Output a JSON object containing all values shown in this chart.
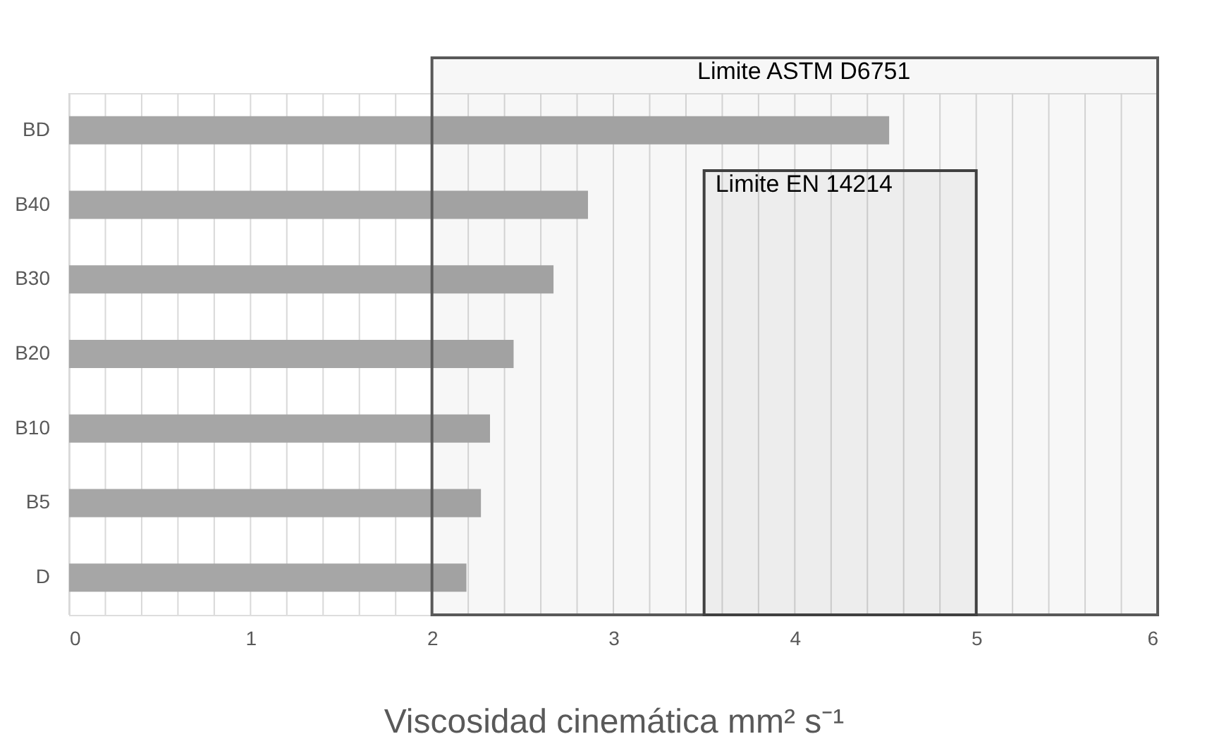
{
  "chart_data": {
    "type": "bar",
    "orientation": "horizontal",
    "xlabel": "Viscosidad cinemática mm² s⁻¹",
    "categories": [
      "BD",
      "B40",
      "B30",
      "B20",
      "B10",
      "B5",
      "D"
    ],
    "values": [
      4.52,
      2.86,
      2.67,
      2.45,
      2.32,
      2.27,
      2.19
    ],
    "color": "#a6a6a6",
    "xlim": [
      0,
      6
    ],
    "xticks": [
      0,
      {
        "value": 0.2,
        "label": null
      },
      {
        "value": 0.4,
        "label": null
      },
      {
        "value": 0.6,
        "label": null
      },
      {
        "value": 0.8,
        "label": null
      },
      1,
      {
        "value": 1.2,
        "label": null
      },
      {
        "value": 1.4,
        "label": null
      },
      {
        "value": 1.6,
        "label": null
      },
      {
        "value": 1.8,
        "label": null
      },
      2,
      {
        "value": 2.2,
        "label": null
      },
      {
        "value": 2.4,
        "label": null
      },
      {
        "value": 2.6,
        "label": null
      },
      {
        "value": 2.8,
        "label": null
      },
      3,
      {
        "value": 3.2,
        "label": null
      },
      {
        "value": 3.4,
        "label": null
      },
      {
        "value": 3.6,
        "label": null
      },
      {
        "value": 3.8,
        "label": null
      },
      4,
      {
        "value": 4.2,
        "label": null
      },
      {
        "value": 4.4,
        "label": null
      },
      {
        "value": 4.6,
        "label": null
      },
      {
        "value": 4.8,
        "label": null
      },
      5,
      {
        "value": 5.2,
        "label": null
      },
      {
        "value": 5.4,
        "label": null
      },
      {
        "value": 5.6,
        "label": null
      },
      {
        "value": 5.8,
        "label": null
      },
      6
    ],
    "grid": "x",
    "bands": [
      {
        "axis": "x",
        "from": 2,
        "to": 6,
        "label": "Limite ASTM D6751",
        "color": "#595959"
      },
      {
        "axis": "x",
        "from": 3.5,
        "to": 5,
        "label": "Limite EN 14214",
        "color": "#404040"
      }
    ]
  }
}
